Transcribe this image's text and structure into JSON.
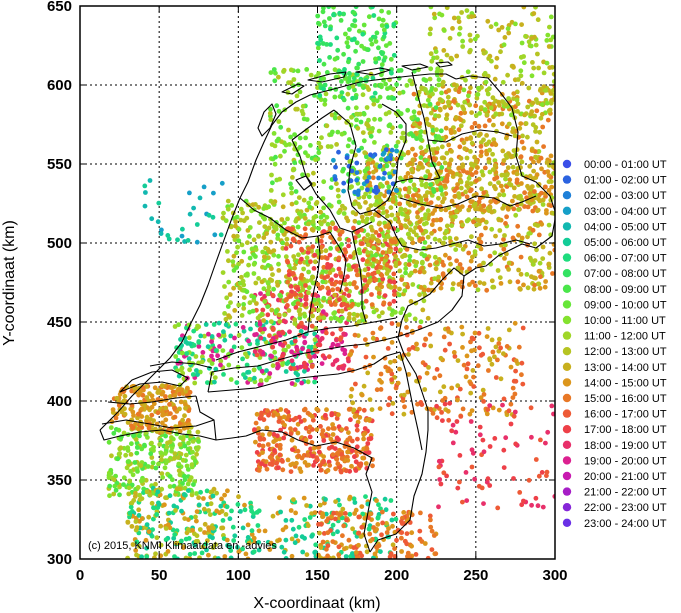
{
  "chart_data": {
    "type": "scatter",
    "xlabel": "X-coordinaat (km)",
    "ylabel": "Y-coordinaat (km)",
    "xlim": [
      0,
      300
    ],
    "ylim": [
      300,
      650
    ],
    "xticks": [
      "0",
      "50",
      "100",
      "150",
      "200",
      "250",
      "300"
    ],
    "yticks": [
      "300",
      "350",
      "400",
      "450",
      "500",
      "550",
      "600",
      "650"
    ],
    "grid": true,
    "legend_placement": "right",
    "copyright": "(c) 2015, KNMI Klimaatdata en -advies",
    "legend": [
      {
        "label": "00:00 - 01:00 UT",
        "color": "#3a4fe8"
      },
      {
        "label": "01:00 - 02:00 UT",
        "color": "#2b63e0"
      },
      {
        "label": "02:00 - 03:00 UT",
        "color": "#1e80d8"
      },
      {
        "label": "03:00 - 04:00 UT",
        "color": "#169fc8"
      },
      {
        "label": "04:00 - 05:00 UT",
        "color": "#12b8b0"
      },
      {
        "label": "05:00 - 06:00 UT",
        "color": "#14cc98"
      },
      {
        "label": "06:00 - 07:00 UT",
        "color": "#1fdc7e"
      },
      {
        "label": "07:00 - 08:00 UT",
        "color": "#33e262"
      },
      {
        "label": "08:00 - 09:00 UT",
        "color": "#4ae64a"
      },
      {
        "label": "09:00 - 10:00 UT",
        "color": "#66e638"
      },
      {
        "label": "10:00 - 11:00 UT",
        "color": "#84e22e"
      },
      {
        "label": "11:00 - 12:00 UT",
        "color": "#a0d628"
      },
      {
        "label": "12:00 - 13:00 UT",
        "color": "#b6c422"
      },
      {
        "label": "13:00 - 14:00 UT",
        "color": "#c8b01e"
      },
      {
        "label": "14:00 - 15:00 UT",
        "color": "#dc961c"
      },
      {
        "label": "15:00 - 16:00 UT",
        "color": "#e87826"
      },
      {
        "label": "16:00 - 17:00 UT",
        "color": "#ee5a36"
      },
      {
        "label": "17:00 - 18:00 UT",
        "color": "#ee4048"
      },
      {
        "label": "18:00 - 19:00 UT",
        "color": "#e8306a"
      },
      {
        "label": "19:00 - 20:00 UT",
        "color": "#dc2090"
      },
      {
        "label": "20:00 - 21:00 UT",
        "color": "#c81ab0"
      },
      {
        "label": "21:00 - 22:00 UT",
        "color": "#a61ec6"
      },
      {
        "label": "22:00 - 23:00 UT",
        "color": "#8626d8"
      },
      {
        "label": "23:00 - 24:00 UT",
        "color": "#6a30e6"
      }
    ],
    "point_clusters": [
      {
        "x": [
          18,
          75
        ],
        "y": [
          340,
          385
        ],
        "n": 260,
        "hours": [
          8,
          9,
          10,
          11,
          12
        ]
      },
      {
        "x": [
          30,
          95
        ],
        "y": [
          300,
          345
        ],
        "n": 220,
        "hours": [
          12,
          13,
          14,
          5,
          6
        ]
      },
      {
        "x": [
          95,
          200
        ],
        "y": [
          300,
          340
        ],
        "n": 200,
        "hours": [
          5,
          6,
          13,
          14
        ]
      },
      {
        "x": [
          150,
          225
        ],
        "y": [
          300,
          330
        ],
        "n": 120,
        "hours": [
          14,
          15,
          16
        ]
      },
      {
        "x": [
          20,
          70
        ],
        "y": [
          380,
          410
        ],
        "n": 200,
        "hours": [
          13,
          14,
          15
        ]
      },
      {
        "x": [
          110,
          185
        ],
        "y": [
          355,
          395
        ],
        "n": 320,
        "hours": [
          15,
          16,
          17,
          14
        ]
      },
      {
        "x": [
          170,
          280
        ],
        "y": [
          390,
          450
        ],
        "n": 220,
        "hours": [
          13,
          14,
          15,
          16
        ]
      },
      {
        "x": [
          225,
          300
        ],
        "y": [
          330,
          400
        ],
        "n": 80,
        "hours": [
          16,
          17,
          18
        ]
      },
      {
        "x": [
          60,
          150
        ],
        "y": [
          410,
          450
        ],
        "n": 260,
        "hours": [
          5,
          6,
          10,
          11,
          19
        ]
      },
      {
        "x": [
          110,
          170
        ],
        "y": [
          420,
          470
        ],
        "n": 160,
        "hours": [
          18,
          19,
          16,
          17
        ]
      },
      {
        "x": [
          90,
          220
        ],
        "y": [
          450,
          530
        ],
        "n": 620,
        "hours": [
          9,
          10,
          11,
          12,
          13
        ]
      },
      {
        "x": [
          130,
          200
        ],
        "y": [
          460,
          510
        ],
        "n": 200,
        "hours": [
          16,
          17,
          15
        ]
      },
      {
        "x": [
          180,
          300
        ],
        "y": [
          470,
          560
        ],
        "n": 620,
        "hours": [
          11,
          12,
          13,
          14,
          15
        ]
      },
      {
        "x": [
          210,
          300
        ],
        "y": [
          520,
          600
        ],
        "n": 360,
        "hours": [
          12,
          13,
          14,
          15
        ]
      },
      {
        "x": [
          120,
          230
        ],
        "y": [
          530,
          610
        ],
        "n": 360,
        "hours": [
          8,
          9,
          10,
          11,
          12
        ]
      },
      {
        "x": [
          150,
          200
        ],
        "y": [
          590,
          650
        ],
        "n": 160,
        "hours": [
          6,
          7,
          8,
          9
        ]
      },
      {
        "x": [
          220,
          300
        ],
        "y": [
          580,
          650
        ],
        "n": 200,
        "hours": [
          10,
          11,
          12,
          13
        ]
      },
      {
        "x": [
          40,
          90
        ],
        "y": [
          500,
          540
        ],
        "n": 30,
        "hours": [
          3,
          4,
          5
        ]
      },
      {
        "x": [
          160,
          200
        ],
        "y": [
          530,
          560
        ],
        "n": 50,
        "hours": [
          1,
          2,
          3
        ]
      }
    ]
  }
}
